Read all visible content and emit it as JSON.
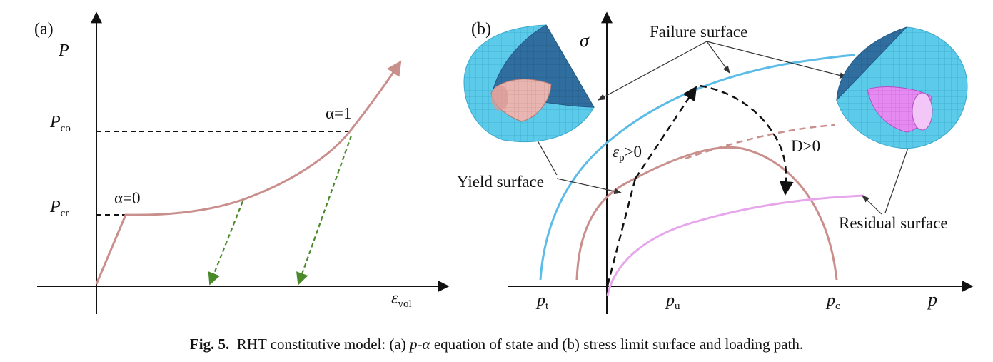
{
  "panel_a": {
    "label": "(a)",
    "y_axis_label": "P",
    "x_axis_label_symbol": "ε",
    "x_axis_label_sub": "vol",
    "tick_pco_main": "P",
    "tick_pco_sub": "co",
    "tick_pcr_main": "P",
    "tick_pcr_sub": "cr",
    "annot_alpha0": "α=0",
    "annot_alpha1": "α=1"
  },
  "panel_b": {
    "label": "(b)",
    "y_axis_label": "σ",
    "x_axis_label": "p",
    "tick_pt_main": "p",
    "tick_pt_sub": "t",
    "tick_pu_main": "p",
    "tick_pu_sub": "u",
    "tick_pc_main": "p",
    "tick_pc_sub": "c",
    "label_failure_surface": "Failure surface",
    "label_yield_surface": "Yield surface",
    "label_residual_surface": "Residual surface",
    "label_damage": "D>0",
    "label_plastic_symbol": "ε",
    "label_plastic_sub": "p",
    "label_plastic_rest": ">0"
  },
  "colors": {
    "yield_curve": "#c98f8c",
    "failure_curve": "#5bbce8",
    "residual_curve": "#e7a6ec",
    "unloading_arrows": "#4a8a2a",
    "sphere_shell": "#5ccbea",
    "sphere_inner": "#2f6e9e",
    "yield_cone": "#e8b5b0",
    "residual_cone": "#e58af0"
  },
  "caption": {
    "fig_label": "Fig. 5.",
    "text_1": "RHT constitutive model: (a) ",
    "italic_p_alpha": "p-α",
    "text_2": " equation of state and (b) stress limit surface and loading path."
  }
}
